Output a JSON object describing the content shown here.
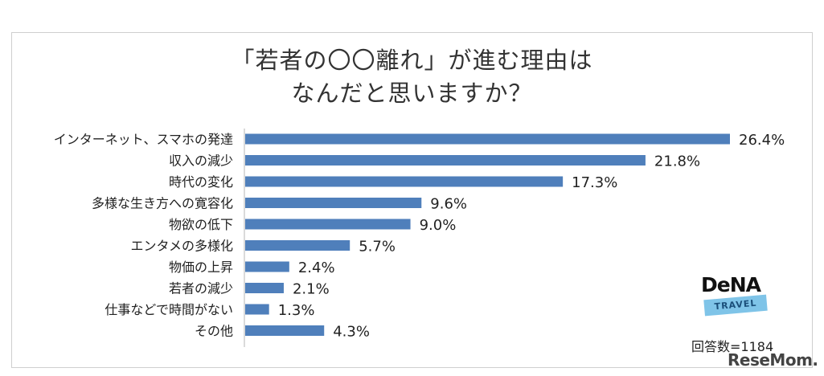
{
  "title_line1": "「若者の〇〇離れ」が進む理由は",
  "title_line2": "なんだと思いますか？",
  "logo": {
    "text": "DeNA",
    "band": "TRAVEL"
  },
  "respondents": "回答数=1184",
  "watermark": "ReseMom.",
  "colors": {
    "bar": "#4f7fbb",
    "axis": "#b5b5b5"
  },
  "chart_data": {
    "type": "bar",
    "orientation": "horizontal",
    "title": "「若者の〇〇離れ」が進む理由はなんだと思いますか？",
    "unit": "%",
    "categories": [
      "インターネット、スマホの発達",
      "収入の減少",
      "時代の変化",
      "多様な生き方への寛容化",
      "物欲の低下",
      "エンタメの多様化",
      "物価の上昇",
      "若者の減少",
      "仕事などで時間がない",
      "その他"
    ],
    "values": [
      26.4,
      21.8,
      17.3,
      9.6,
      9.0,
      5.7,
      2.4,
      2.1,
      1.3,
      4.3
    ],
    "labels": [
      "26.4%",
      "21.8%",
      "17.3%",
      "9.6%",
      "9.0%",
      "5.7%",
      "2.4%",
      "2.1%",
      "1.3%",
      "4.3%"
    ],
    "xlim": [
      0,
      30
    ],
    "grid": false,
    "legend": "none"
  }
}
